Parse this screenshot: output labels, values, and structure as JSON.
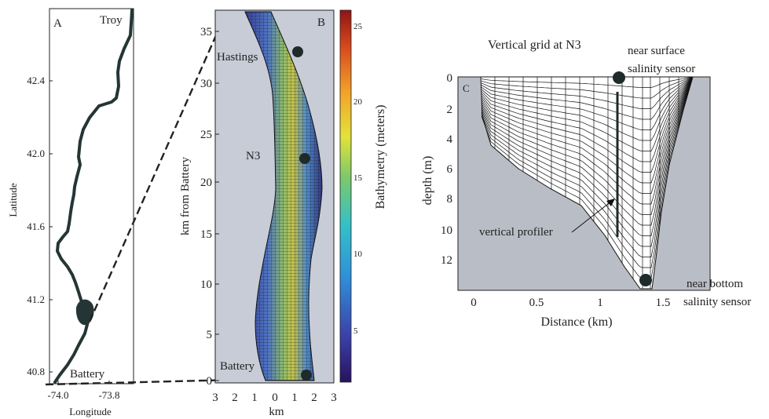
{
  "panel_a": {
    "label": "A",
    "place_top": "Troy",
    "place_bottom": "Battery",
    "ylabel": "Latitude",
    "xlabel": "Longitude",
    "yticks": [
      "42.4",
      "42.0",
      "41.6",
      "41.2",
      "40.8"
    ],
    "xticks": [
      "-74.0",
      "-73.8"
    ],
    "river_color": "#253535"
  },
  "panel_b": {
    "label": "B",
    "ylabel": "km from Battery",
    "xlabel": "km",
    "yticks": [
      "35",
      "30",
      "25",
      "20",
      "15",
      "10",
      "5",
      "0"
    ],
    "xticks": [
      "3",
      "2",
      "1",
      "0",
      "1",
      "2",
      "3"
    ],
    "stations": [
      "Hastings",
      "N3",
      "Battery"
    ],
    "background": "#c7ccd6",
    "colorbar": {
      "label": "Bathymetry (meters)",
      "ticks": [
        "25",
        "20",
        "15",
        "10",
        "5"
      ]
    }
  },
  "panel_c": {
    "label": "C",
    "title": "Vertical grid at N3",
    "ylabel": "depth  (m)",
    "xlabel": "Distance (km)",
    "yticks": [
      "0",
      "2",
      "4",
      "6",
      "8",
      "10",
      "12"
    ],
    "xticks": [
      "0",
      "0.5",
      "1",
      "1.5"
    ],
    "annotations": {
      "surface_sensor_1": "near surface",
      "surface_sensor_2": "salinity sensor",
      "bottom_sensor_1": "near bottom",
      "bottom_sensor_2": "salinity sensor",
      "profiler": "vertical profiler"
    },
    "background": "#b9bdc6"
  }
}
